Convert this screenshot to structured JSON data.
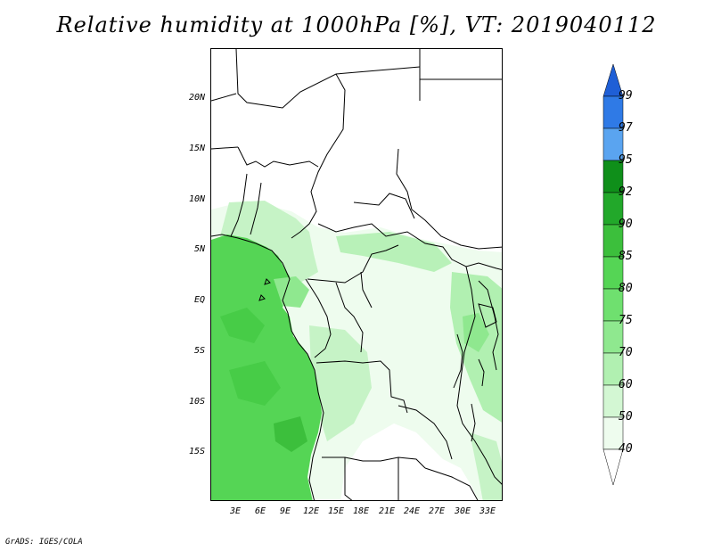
{
  "title": "Relative humidity at 1000hPa [%], VT: 2019040112",
  "credit": "GrADS: IGES/COLA",
  "lat_ticks": [
    "20N",
    "15N",
    "10N",
    "5N",
    "EQ",
    "5S",
    "10S",
    "15S"
  ],
  "lon_ticks": [
    "3E",
    "6E",
    "9E",
    "12E",
    "15E",
    "18E",
    "21E",
    "24E",
    "27E",
    "30E",
    "33E"
  ],
  "colorbar": {
    "labels": [
      "99",
      "97",
      "95",
      "92",
      "90",
      "85",
      "80",
      "75",
      "70",
      "60",
      "50",
      "40"
    ],
    "colors": [
      "#1f5fd6",
      "#2f7ae6",
      "#5aa4f0",
      "#0f8f1a",
      "#22a82a",
      "#3cbf3c",
      "#55d555",
      "#6fe06f",
      "#8fe88f",
      "#b1f0b1",
      "#d3f7d3",
      "#eefcee"
    ]
  },
  "colors": {
    "ocean_humid": "#55d555",
    "ocean_dark": "#3cbf3c",
    "land_light": "#eefcee",
    "land_mid": "#b1f0b1"
  }
}
